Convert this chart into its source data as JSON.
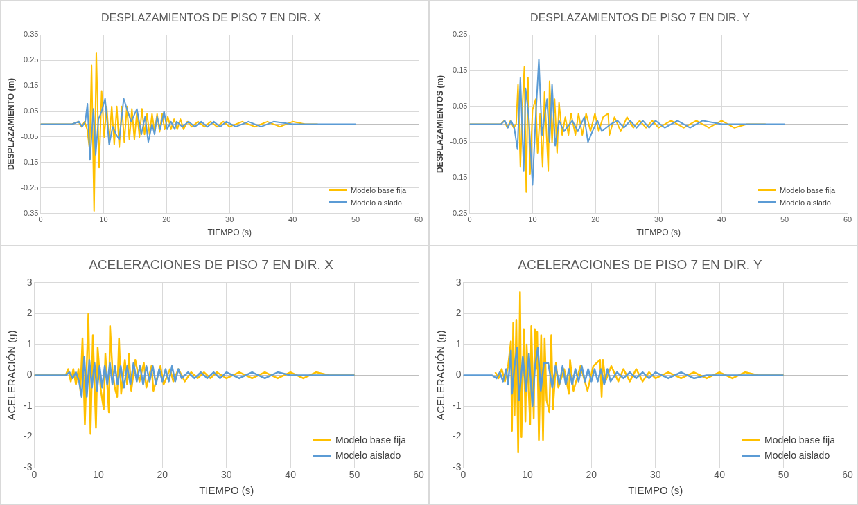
{
  "chart_data": [
    {
      "type": "line",
      "title": "DESPLAZAMIENTOS DE PISO 7 EN DIR. X",
      "xlabel": "TIEMPO (s)",
      "ylabel": "DESPLAZAMIENTO (m)",
      "xlim": [
        0,
        60
      ],
      "xticks": [
        0,
        10,
        20,
        30,
        40,
        50,
        60
      ],
      "ylim": [
        -0.35,
        0.35
      ],
      "yticks": [
        -0.35,
        -0.25,
        -0.15,
        -0.05,
        0.05,
        0.15,
        0.25,
        0.35
      ],
      "grid": true,
      "legend": "bottom right",
      "marker": "none",
      "series": [
        {
          "name": "Modelo base fija",
          "color": "#ffc000",
          "x": [
            0,
            5,
            6,
            6.5,
            7,
            7.4,
            7.8,
            8.1,
            8.5,
            8.85,
            9.3,
            9.7,
            10.1,
            10.5,
            10.9,
            11.3,
            11.7,
            12.1,
            12.5,
            12.9,
            13.3,
            13.7,
            14.1,
            14.5,
            14.9,
            15.3,
            15.7,
            16.1,
            16.5,
            16.9,
            17.3,
            17.7,
            18.1,
            18.5,
            18.9,
            19.3,
            19.7,
            20.2,
            20.7,
            21.2,
            21.7,
            22.2,
            22.7,
            23.3,
            24,
            25,
            26,
            27,
            28,
            29,
            30,
            32,
            34,
            36,
            38,
            40,
            42,
            44
          ],
          "values": [
            0,
            0,
            0.01,
            -0.01,
            0.01,
            -0.02,
            -0.1,
            0.23,
            -0.34,
            0.28,
            -0.17,
            0.13,
            -0.05,
            0.07,
            -0.07,
            0.07,
            -0.08,
            0.07,
            -0.09,
            0.07,
            -0.07,
            0.07,
            -0.06,
            0.06,
            -0.06,
            0.05,
            -0.05,
            0.06,
            -0.04,
            0.04,
            -0.04,
            0.04,
            -0.03,
            0.04,
            -0.03,
            0.04,
            -0.02,
            0.03,
            -0.02,
            0.02,
            -0.02,
            0.02,
            -0.02,
            0.01,
            -0.01,
            0.01,
            -0.01,
            0.01,
            -0.01,
            0.01,
            -0.01,
            0.01,
            -0.01,
            0.01,
            -0.01,
            0.01,
            0,
            0
          ]
        },
        {
          "name": "Modelo aislado",
          "color": "#5b9bd5",
          "x": [
            0,
            5,
            6.1,
            6.6,
            7.1,
            7.45,
            7.85,
            8.4,
            8.75,
            9.2,
            9.7,
            10.25,
            10.9,
            11.45,
            12,
            12.5,
            13.2,
            13.7,
            14.4,
            15.3,
            16,
            16.6,
            17.1,
            17.7,
            18.1,
            18.5,
            19,
            19.6,
            20.1,
            20.7,
            21.3,
            21.6,
            22.5,
            23.5,
            24.5,
            25.5,
            26.5,
            27.5,
            28.5,
            29.5,
            31,
            33,
            35,
            37,
            40,
            45,
            50
          ],
          "values": [
            0,
            0,
            0.01,
            -0.01,
            0.01,
            0.08,
            -0.14,
            0.06,
            -0.12,
            0.02,
            0.05,
            0.1,
            -0.08,
            -0.01,
            -0.04,
            -0.06,
            0.1,
            0.06,
            0.01,
            0.06,
            -0.04,
            0.03,
            -0.07,
            0,
            -0.04,
            0.03,
            -0.02,
            0.05,
            -0.02,
            0.01,
            -0.02,
            0.01,
            -0.01,
            0.01,
            -0.01,
            0.01,
            -0.01,
            0.01,
            -0.01,
            0.01,
            -0.01,
            0.01,
            -0.01,
            0.01,
            0,
            0,
            0
          ]
        }
      ]
    },
    {
      "type": "line",
      "title": "DESPLAZAMIENTOS DE PISO 7 EN DIR. Y",
      "xlabel": "TIEMPO (s)",
      "ylabel": "DESPLAZAMIENTOS (m)",
      "xlim": [
        0,
        60
      ],
      "xticks": [
        0,
        10,
        20,
        30,
        40,
        50,
        60
      ],
      "ylim": [
        -0.25,
        0.25
      ],
      "yticks": [
        -0.25,
        -0.15,
        -0.05,
        0.05,
        0.15,
        0.25
      ],
      "grid": true,
      "legend": "bottom right",
      "marker": "none",
      "series": [
        {
          "name": "Modelo base fija",
          "color": "#ffc000",
          "x": [
            0,
            5,
            5.5,
            6,
            6.5,
            7,
            7.4,
            7.7,
            8.07,
            8.4,
            8.7,
            9.0,
            9.28,
            9.6,
            10.0,
            10.5,
            10.8,
            11.2,
            11.6,
            11.9,
            12.5,
            12.7,
            13.1,
            13.5,
            13.9,
            14.2,
            14.7,
            15.2,
            15.7,
            16.1,
            16.8,
            17.3,
            17.9,
            18.5,
            19.2,
            19.9,
            20.5,
            21.2,
            22,
            22.2,
            23,
            24,
            25,
            26,
            27,
            28,
            29,
            30,
            32,
            34,
            36,
            38,
            40,
            42,
            44,
            47
          ],
          "values": [
            0,
            0,
            0.01,
            -0.01,
            0.01,
            -0.01,
            0,
            0.11,
            -0.12,
            0.05,
            0.16,
            -0.19,
            0.13,
            -0.14,
            0.04,
            0.07,
            -0.08,
            0.03,
            -0.12,
            0.09,
            -0.13,
            0.12,
            -0.05,
            0.07,
            -0.08,
            0.06,
            -0.03,
            0.02,
            -0.03,
            0.03,
            -0.03,
            0.03,
            -0.03,
            0.03,
            -0.02,
            0.03,
            -0.02,
            0.02,
            0.03,
            -0.03,
            0.02,
            -0.02,
            0.02,
            -0.01,
            0.01,
            -0.01,
            0.01,
            -0.01,
            0.01,
            -0.01,
            0.01,
            -0.01,
            0.01,
            -0.01,
            0,
            0
          ]
        },
        {
          "name": "Modelo aislado",
          "color": "#5b9bd5",
          "x": [
            0,
            5,
            5.6,
            6.1,
            6.6,
            7.1,
            7.6,
            8.07,
            8.6,
            8.9,
            9.4,
            10.0,
            10.5,
            11.0,
            11.5,
            12.3,
            12.7,
            13.1,
            13.6,
            14.2,
            15,
            16.3,
            17.2,
            18.2,
            18.8,
            19.5,
            20.3,
            21,
            22.4,
            23.5,
            24.5,
            25.5,
            26.5,
            27.5,
            28.5,
            29.5,
            31,
            33,
            35,
            37,
            40,
            45,
            50
          ],
          "values": [
            0,
            0,
            0.01,
            -0.01,
            0.01,
            -0.01,
            -0.07,
            0.13,
            -0.13,
            0.1,
            0.02,
            -0.17,
            0.02,
            0.18,
            -0.03,
            0.07,
            -0.05,
            0.11,
            -0.06,
            0.01,
            -0.02,
            0.01,
            -0.02,
            0.02,
            -0.05,
            -0.02,
            0.01,
            -0.02,
            0,
            0.01,
            -0.01,
            0.01,
            -0.01,
            0.01,
            -0.01,
            0.01,
            -0.01,
            0.01,
            -0.01,
            0.01,
            0,
            0,
            0
          ]
        }
      ]
    },
    {
      "type": "line",
      "title": "ACELERACIONES DE PISO 7 EN DIR. X",
      "xlabel": "TIEMPO (s)",
      "ylabel": "ACELERACIÓN (g)",
      "xlim": [
        0,
        60
      ],
      "xticks": [
        0,
        10,
        20,
        30,
        40,
        50,
        60
      ],
      "ylim": [
        -3,
        3
      ],
      "yticks": [
        -3,
        -2,
        -1,
        0,
        1,
        2,
        3
      ],
      "grid": true,
      "legend": "bottom right",
      "marker": "none",
      "series": [
        {
          "name": "Modelo base fija",
          "color": "#ffc000",
          "x": [
            0,
            4.9,
            5.3,
            5.7,
            6.1,
            6.5,
            6.9,
            7.2,
            7.53,
            7.9,
            8.45,
            8.78,
            9.15,
            9.63,
            9.9,
            10.4,
            10.84,
            11.1,
            11.65,
            11.83,
            12.2,
            12.57,
            12.94,
            13.23,
            13.56,
            14.15,
            14.5,
            14.77,
            15.14,
            15.77,
            16.43,
            17.1,
            17.5,
            18.3,
            18.6,
            19.7,
            20.2,
            21.2,
            21.7,
            22.5,
            23.5,
            24.5,
            25.5,
            26.5,
            27.5,
            28.5,
            30,
            32,
            34,
            36,
            38,
            40,
            42,
            44,
            46,
            48,
            50
          ],
          "values": [
            0,
            0,
            0.2,
            -0.2,
            0.2,
            -0.3,
            0.2,
            -0.5,
            1.2,
            -1.6,
            2,
            -1.9,
            1.3,
            -1.7,
            0.9,
            -0.5,
            -1.1,
            0.7,
            -1.2,
            1.6,
            0.2,
            -0.4,
            -0.7,
            1.2,
            -0.6,
            0.5,
            -0.3,
            0.7,
            -0.5,
            0.5,
            -0.2,
            0.4,
            -0.4,
            0.3,
            -0.5,
            0.3,
            -0.3,
            0.2,
            -0.2,
            0.2,
            -0.2,
            0.1,
            -0.1,
            0.1,
            -0.1,
            0.1,
            -0.1,
            0.1,
            -0.1,
            0.1,
            -0.1,
            0.1,
            -0.1,
            0.1,
            0,
            0,
            0
          ]
        },
        {
          "name": "Modelo aislado",
          "color": "#5b9bd5",
          "x": [
            0,
            4.9,
            5.5,
            6,
            6.5,
            7,
            7.4,
            7.8,
            8.2,
            8.6,
            9,
            9.4,
            9.8,
            10.2,
            10.6,
            11,
            11.4,
            11.8,
            12.2,
            12.6,
            13,
            13.5,
            14,
            14.5,
            15,
            15.5,
            16,
            16.5,
            17,
            17.5,
            18,
            18.5,
            19,
            19.5,
            20,
            20.5,
            21,
            21.5,
            22,
            22.5,
            23,
            24,
            25,
            26,
            27,
            28,
            29,
            30,
            32,
            34,
            36,
            38,
            40,
            43,
            46,
            50
          ],
          "values": [
            0,
            0,
            0.1,
            -0.1,
            0.1,
            -0.2,
            -0.7,
            0.6,
            -0.7,
            0.5,
            -0.4,
            0.4,
            -0.5,
            0.3,
            -0.4,
            0.3,
            -0.3,
            0.4,
            -0.3,
            0.3,
            -0.3,
            0.3,
            -0.4,
            0.3,
            -0.3,
            0.4,
            -0.2,
            0.3,
            -0.3,
            0.3,
            -0.2,
            0.3,
            -0.3,
            0.2,
            -0.2,
            0.2,
            -0.2,
            0.3,
            -0.2,
            0.2,
            -0.1,
            0.1,
            -0.1,
            0.1,
            -0.1,
            0.1,
            -0.1,
            0.1,
            -0.1,
            0.1,
            -0.1,
            0.1,
            0,
            0,
            0,
            0
          ]
        }
      ]
    },
    {
      "type": "line",
      "title": "ACELERACIONES DE PISO 7 EN DIR. Y",
      "xlabel": "TIEMPO (s)",
      "ylabel": "ACELERACIÓN (g)",
      "xlim": [
        0,
        60
      ],
      "xticks": [
        0,
        10,
        20,
        30,
        40,
        50,
        60
      ],
      "ylim": [
        -3,
        3
      ],
      "yticks": [
        -3,
        -2,
        -1,
        0,
        1,
        2,
        3
      ],
      "grid": true,
      "legend": "bottom right",
      "marker": "none",
      "series": [
        {
          "name": "Modelo base fija",
          "color": "#ffc000",
          "x": [
            5,
            5.5,
            6,
            6.5,
            7,
            7.44,
            7.6,
            7.8,
            8.0,
            8.28,
            8.57,
            8.86,
            9.08,
            9.45,
            9.7,
            9.9,
            10.44,
            10.62,
            11,
            11.17,
            11.35,
            11.54,
            11.8,
            12.16,
            12.45,
            12.7,
            13,
            13.44,
            13.74,
            14,
            14.47,
            14.84,
            15.75,
            16.5,
            16.67,
            17.2,
            18.3,
            19.4,
            20.3,
            21.35,
            21.6,
            21.8,
            22.2,
            23.1,
            24.2,
            25,
            26,
            27,
            28,
            29,
            30,
            32,
            34,
            36,
            38,
            40,
            42,
            44,
            46,
            48,
            50
          ],
          "values": [
            0.1,
            -0.1,
            0.2,
            -0.2,
            0.3,
            1.1,
            -1.8,
            1.7,
            -1.3,
            1.8,
            -2.5,
            2.7,
            -2,
            1.5,
            -1.5,
            1,
            -1.6,
            1.6,
            -1.4,
            1.5,
            0.2,
            1.4,
            -2.1,
            1.3,
            -2.1,
            1.2,
            -0.8,
            -1.2,
            1.3,
            -1.1,
            0.4,
            -0.4,
            0.2,
            -0.6,
            0.5,
            -0.5,
            0.3,
            -0.5,
            0.3,
            0.5,
            -0.7,
            0.5,
            -0.2,
            0.3,
            -0.2,
            0.2,
            -0.2,
            0.2,
            -0.2,
            0.1,
            -0.1,
            0.1,
            -0.1,
            0.1,
            -0.1,
            0.1,
            -0.1,
            0.1,
            0,
            0,
            0
          ]
        },
        {
          "name": "Modelo aislado",
          "color": "#5b9bd5",
          "x": [
            0,
            4.5,
            5.2,
            5.7,
            6.2,
            6.7,
            7,
            7.44,
            7.6,
            8.0,
            8.4,
            8.7,
            9.3,
            9.8,
            10.25,
            10.8,
            11.2,
            11.65,
            12.1,
            12.6,
            13.26,
            13.9,
            14.4,
            15,
            15.5,
            16,
            16.5,
            17,
            17.5,
            18,
            18.5,
            19,
            19.5,
            20,
            20.5,
            21,
            21.5,
            22,
            22.5,
            23,
            24,
            25,
            26,
            27,
            28,
            29,
            30,
            32,
            34,
            36,
            38,
            40,
            43,
            46,
            50
          ],
          "values": [
            0,
            0,
            -0.1,
            0.1,
            -0.2,
            0.2,
            -0.3,
            0.8,
            -0.6,
            0.3,
            0.9,
            -0.8,
            0.6,
            -0.5,
            0.7,
            -1,
            0.3,
            0.9,
            -0.5,
            0.4,
            0.4,
            -0.4,
            0.3,
            -0.3,
            0.3,
            -0.3,
            0.2,
            -0.3,
            0.2,
            -0.2,
            0.3,
            -0.2,
            0.2,
            -0.2,
            0.2,
            -0.2,
            0.2,
            -0.3,
            0.2,
            -0.2,
            0.1,
            -0.1,
            0.1,
            -0.1,
            0.1,
            -0.1,
            0.1,
            -0.1,
            0.1,
            -0.1,
            0,
            0,
            0,
            0,
            0
          ]
        }
      ]
    }
  ]
}
